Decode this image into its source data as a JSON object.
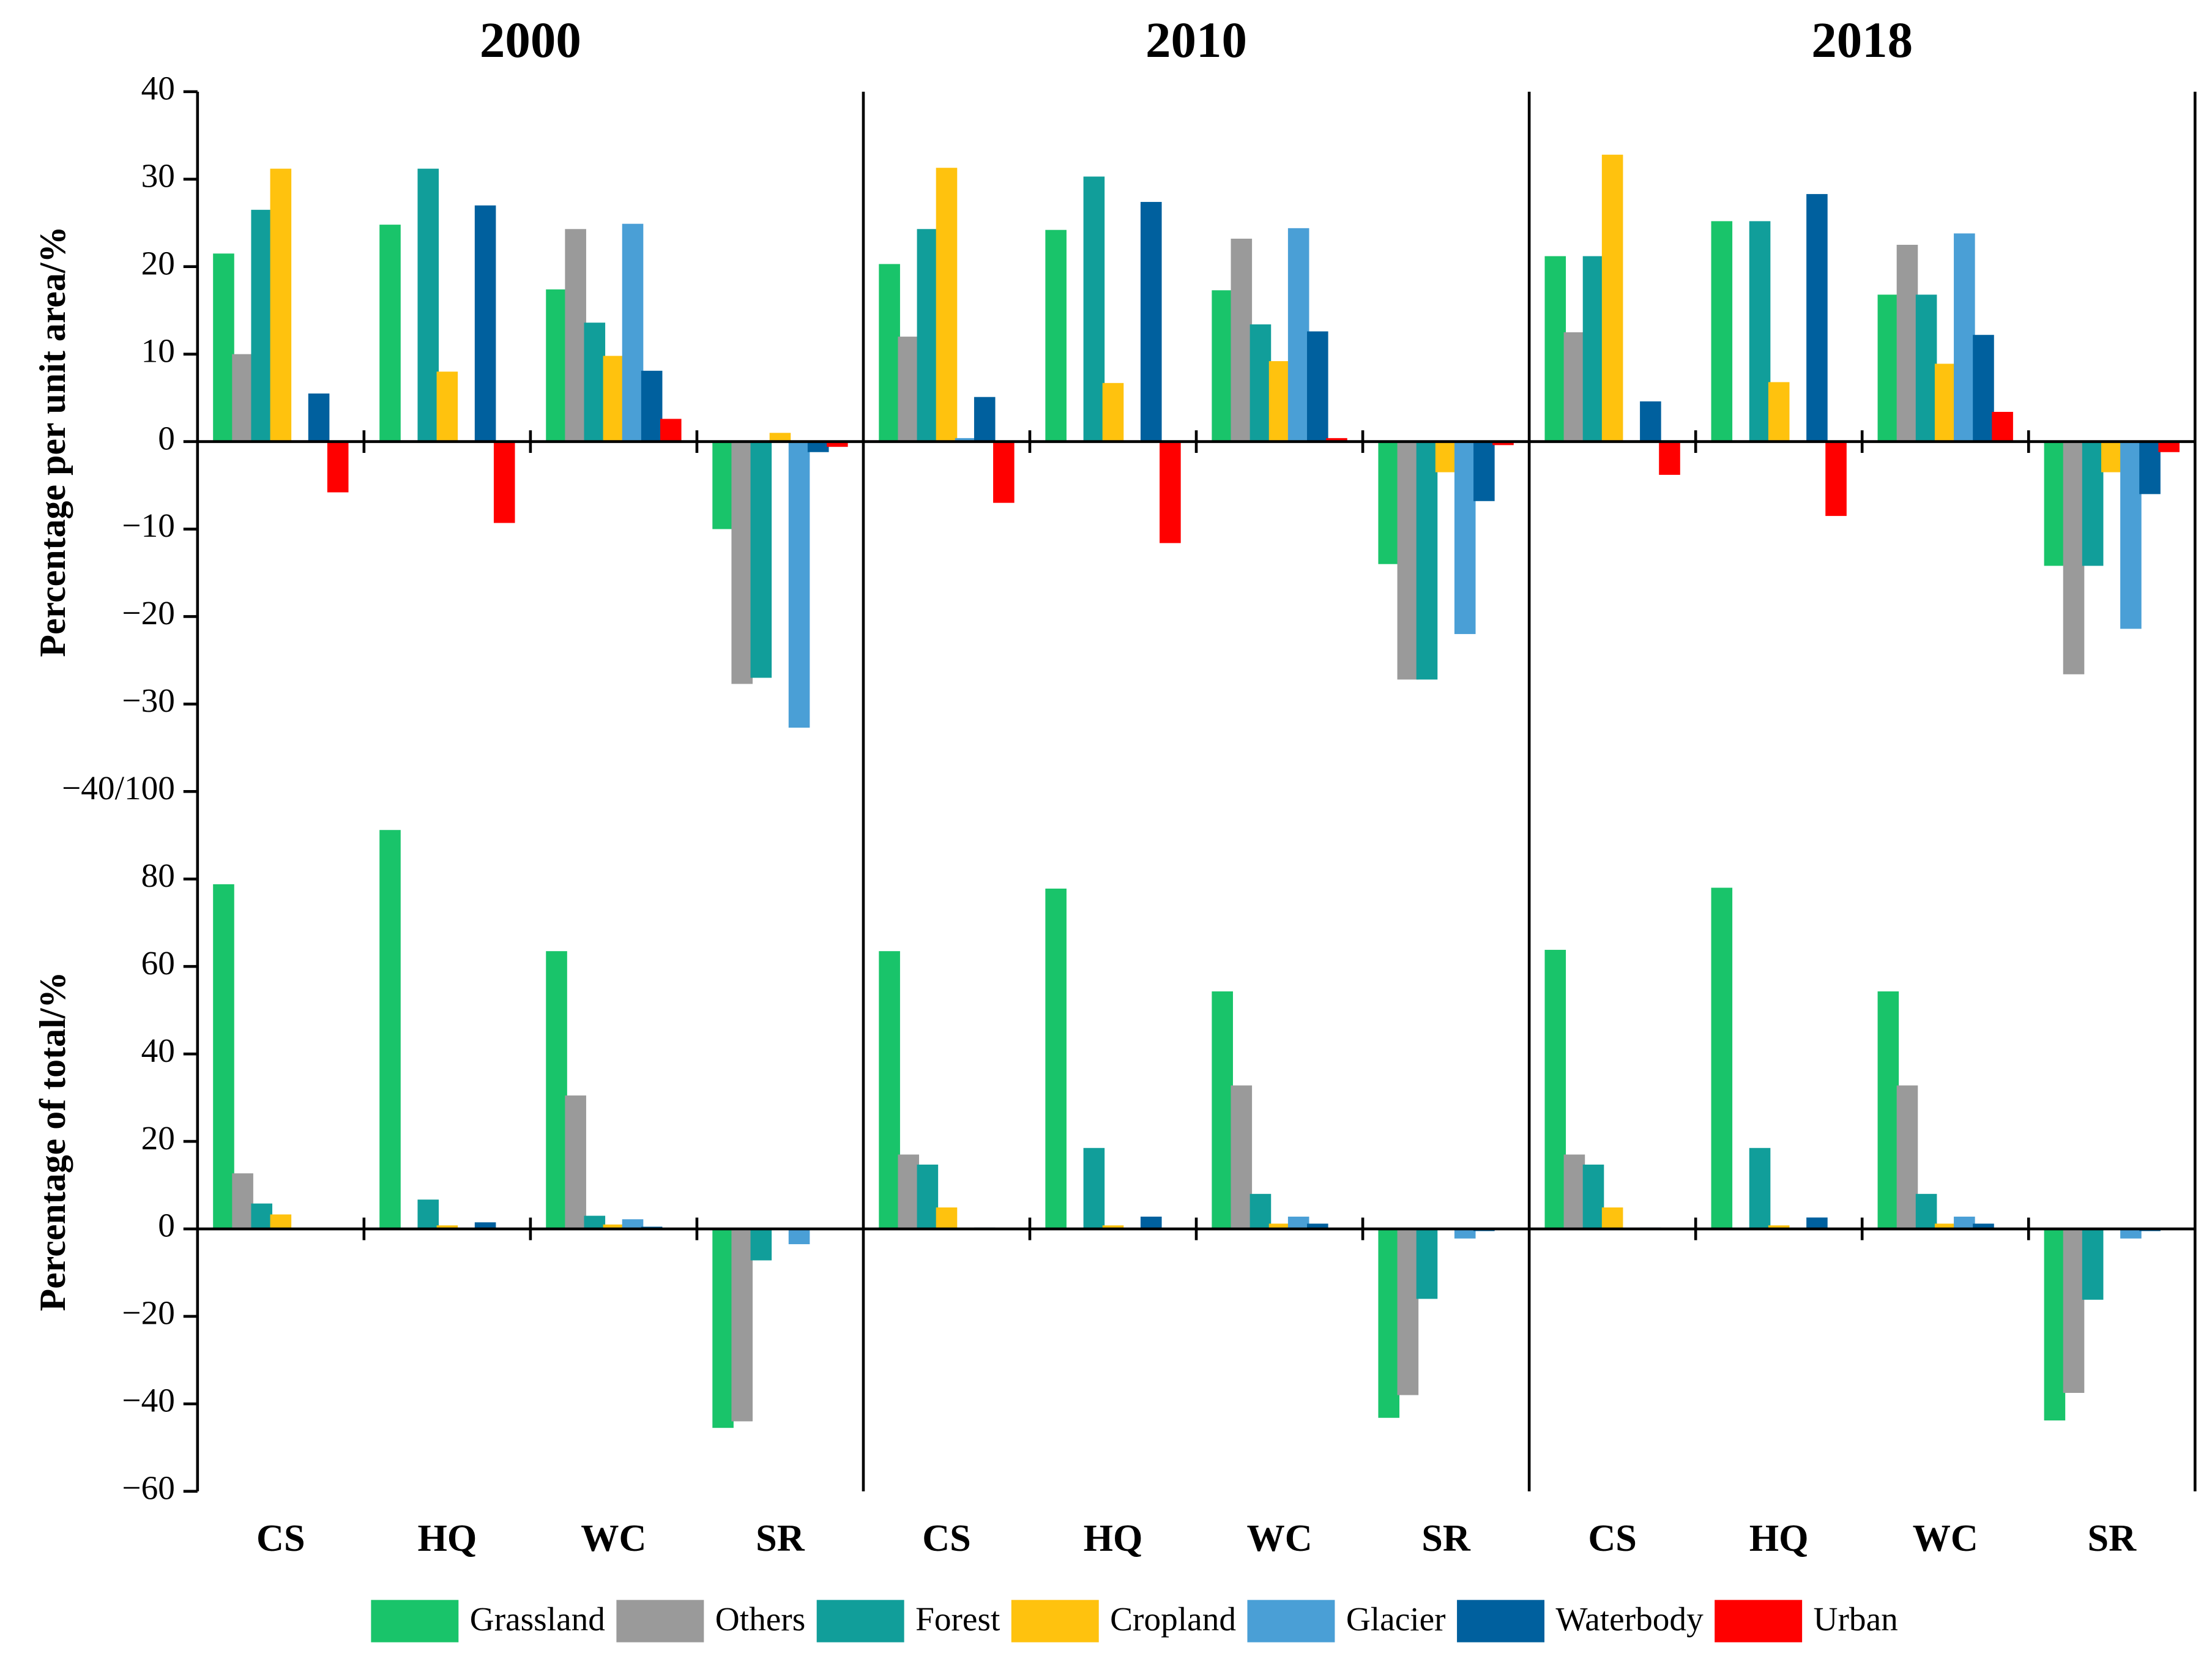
{
  "chart_data": {
    "type": "bar",
    "titles": [
      "2000",
      "2010",
      "2018"
    ],
    "categories": [
      "CS",
      "HQ",
      "WC",
      "SR"
    ],
    "series": [
      {
        "name": "Grassland",
        "color": "#19c46a"
      },
      {
        "name": "Others",
        "color": "#9a9a9a"
      },
      {
        "name": "Forest",
        "color": "#119e9a"
      },
      {
        "name": "Cropland",
        "color": "#ffc20e"
      },
      {
        "name": "Glacier",
        "color": "#4a9fd6"
      },
      {
        "name": "Waterbody",
        "color": "#00609e"
      },
      {
        "name": "Urban",
        "color": "#ff0000"
      }
    ],
    "rows": [
      {
        "y_label": "Percentage per unit area/%",
        "ylim": [
          -40,
          40
        ],
        "yticks": [
          {
            "value": -40,
            "label": "−40/100"
          },
          {
            "value": -30,
            "label": "−30"
          },
          {
            "value": -20,
            "label": "−20"
          },
          {
            "value": -10,
            "label": "−10"
          },
          0,
          10,
          20,
          30,
          40
        ],
        "values": [
          [
            [
              21.5,
              24.8,
              17.4,
              -10
            ],
            [
              10,
              0,
              24.3,
              -27.7
            ],
            [
              26.5,
              31.2,
              13.6,
              -27
            ],
            [
              31.2,
              8,
              9.8,
              1
            ],
            [
              0,
              0,
              24.9,
              -32.7
            ],
            [
              5.5,
              27,
              8.1,
              -1.2
            ],
            [
              -5.8,
              -9.3,
              2.6,
              -0.6
            ]
          ],
          [
            [
              20.3,
              24.2,
              17.3,
              -14
            ],
            [
              12,
              0,
              23.2,
              -27.2
            ],
            [
              24.3,
              30.3,
              13.4,
              -27.2
            ],
            [
              31.3,
              6.7,
              9.2,
              -3.5
            ],
            [
              0.4,
              0,
              24.4,
              -22
            ],
            [
              5.1,
              27.4,
              12.6,
              -6.8
            ],
            [
              -7,
              -11.6,
              0.4,
              -0.4
            ]
          ],
          [
            [
              21.2,
              25.2,
              16.8,
              -14.2
            ],
            [
              12.5,
              0,
              22.5,
              -26.6
            ],
            [
              21.2,
              25.2,
              16.8,
              -14.2
            ],
            [
              32.8,
              6.8,
              8.9,
              -3.5
            ],
            [
              0,
              0,
              23.8,
              -21.4
            ],
            [
              4.6,
              28.3,
              12.2,
              -6
            ],
            [
              -3.8,
              -8.5,
              3.4,
              -1.2
            ]
          ]
        ]
      },
      {
        "y_label": "Percentage of total/%",
        "ylim": [
          -60,
          100
        ],
        "yticks": [
          {
            "value": -60,
            "label": "−60"
          },
          {
            "value": -40,
            "label": "−40"
          },
          {
            "value": -20,
            "label": "−20"
          },
          0,
          20,
          40,
          60,
          80
        ],
        "values": [
          [
            [
              78.8,
              91.2,
              63.5,
              -45.5
            ],
            [
              12.7,
              0,
              30.5,
              -44
            ],
            [
              5.8,
              6.7,
              3,
              -7.2
            ],
            [
              3.3,
              0.8,
              1,
              0
            ],
            [
              0,
              0,
              2.2,
              -3.5
            ],
            [
              0.2,
              1.5,
              0.5,
              0
            ],
            [
              0.2,
              0,
              0.2,
              0
            ]
          ],
          [
            [
              63.5,
              77.8,
              54.3,
              -43.2
            ],
            [
              17,
              0,
              32.8,
              -38
            ],
            [
              14.7,
              18.5,
              8,
              -16
            ],
            [
              4.9,
              0.8,
              1.2,
              0
            ],
            [
              0,
              0,
              2.8,
              -2.2
            ],
            [
              0.3,
              2.8,
              1.2,
              -0.5
            ],
            [
              0,
              0,
              0,
              0
            ]
          ],
          [
            [
              63.8,
              78,
              54.3,
              -43.8
            ],
            [
              17,
              0,
              32.8,
              -37.5
            ],
            [
              14.7,
              18.5,
              8,
              -16.2
            ],
            [
              4.9,
              0.8,
              1.2,
              0
            ],
            [
              0,
              0,
              2.8,
              -2.2
            ],
            [
              0.3,
              2.6,
              1.2,
              -0.5
            ],
            [
              0,
              0,
              0,
              0
            ]
          ]
        ]
      }
    ]
  }
}
